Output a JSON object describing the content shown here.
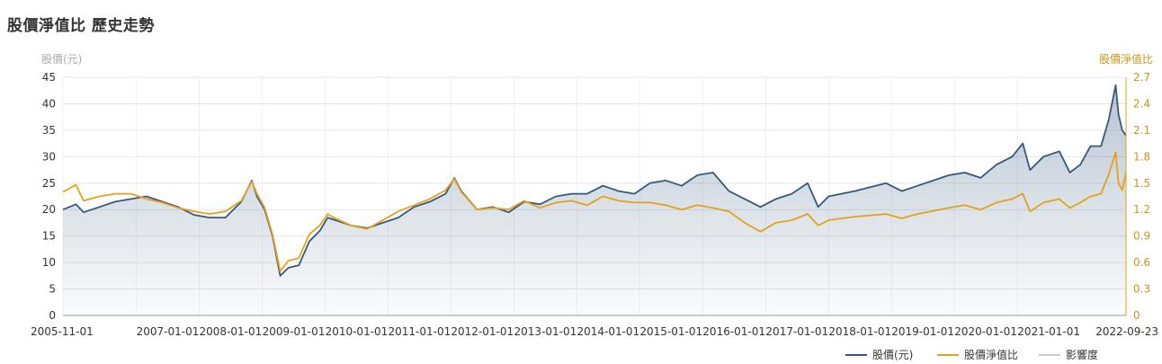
{
  "title": "股價淨值比 歷史走勢",
  "colors": {
    "price": "#34587e",
    "pbr": "#e3a21a",
    "impact": "#cccccc"
  },
  "chart_data": {
    "type": "line",
    "title": "股價淨值比 歷史走勢",
    "x_range": [
      "2005-11-01",
      "2022-09-23"
    ],
    "x_tick_labels": [
      "2005-11-01",
      "2007-01-01",
      "2008-01-01",
      "2009-01-01",
      "2010-01-01",
      "2011-01-01",
      "2012-01-01",
      "2013-01-01",
      "2014-01-01",
      "2015-01-01",
      "2016-01-01",
      "2017-01-01",
      "2018-01-01",
      "2019-01-01",
      "2020-01-01",
      "2021-01-01",
      "2022-09-23"
    ],
    "y_left": {
      "label": "股價(元)",
      "min": 0,
      "max": 45,
      "ticks": [
        0,
        5,
        10,
        15,
        20,
        25,
        30,
        35,
        40,
        45
      ]
    },
    "y_right": {
      "label": "股價淨值比",
      "min": 0,
      "max": 2.7,
      "ticks": [
        "0",
        "0.3",
        "0.6",
        "0.9",
        "1.2",
        "1.5",
        "1.8",
        "2.1",
        "2.4",
        "2.7"
      ]
    },
    "grid": true,
    "legend_position": "bottom-right",
    "series": [
      {
        "name": "股價(元)",
        "axis": "left",
        "area": true,
        "points": [
          [
            "2005-11-01",
            20.0
          ],
          [
            "2006-01-15",
            21.0
          ],
          [
            "2006-03-01",
            19.5
          ],
          [
            "2006-06-01",
            20.5
          ],
          [
            "2006-09-01",
            21.5
          ],
          [
            "2006-12-01",
            22.0
          ],
          [
            "2007-03-01",
            22.5
          ],
          [
            "2007-06-01",
            21.5
          ],
          [
            "2007-09-01",
            20.5
          ],
          [
            "2007-12-01",
            19.0
          ],
          [
            "2008-03-01",
            18.5
          ],
          [
            "2008-06-01",
            18.5
          ],
          [
            "2008-09-01",
            21.5
          ],
          [
            "2008-11-01",
            25.5
          ],
          [
            "2008-12-01",
            22.5
          ],
          [
            "2009-01-15",
            20.0
          ],
          [
            "2009-03-01",
            15.0
          ],
          [
            "2009-04-15",
            7.5
          ],
          [
            "2009-06-01",
            9.0
          ],
          [
            "2009-08-01",
            9.5
          ],
          [
            "2009-10-01",
            14.0
          ],
          [
            "2009-12-01",
            16.0
          ],
          [
            "2010-01-15",
            18.5
          ],
          [
            "2010-03-01",
            18.0
          ],
          [
            "2010-06-01",
            17.0
          ],
          [
            "2010-09-01",
            16.5
          ],
          [
            "2010-12-01",
            17.5
          ],
          [
            "2011-03-01",
            18.5
          ],
          [
            "2011-06-01",
            20.5
          ],
          [
            "2011-09-01",
            21.5
          ],
          [
            "2011-12-01",
            23.0
          ],
          [
            "2012-01-20",
            26.0
          ],
          [
            "2012-03-01",
            23.5
          ],
          [
            "2012-06-01",
            20.0
          ],
          [
            "2012-09-01",
            20.5
          ],
          [
            "2012-12-01",
            19.5
          ],
          [
            "2013-03-01",
            21.5
          ],
          [
            "2013-06-01",
            21.0
          ],
          [
            "2013-09-01",
            22.5
          ],
          [
            "2013-12-01",
            23.0
          ],
          [
            "2014-03-01",
            23.0
          ],
          [
            "2014-06-01",
            24.5
          ],
          [
            "2014-09-01",
            23.5
          ],
          [
            "2014-12-01",
            23.0
          ],
          [
            "2015-03-01",
            25.0
          ],
          [
            "2015-06-01",
            25.5
          ],
          [
            "2015-09-01",
            24.5
          ],
          [
            "2015-12-01",
            26.5
          ],
          [
            "2016-03-01",
            27.0
          ],
          [
            "2016-06-01",
            23.5
          ],
          [
            "2016-09-01",
            22.0
          ],
          [
            "2016-12-01",
            20.5
          ],
          [
            "2017-03-01",
            22.0
          ],
          [
            "2017-06-01",
            23.0
          ],
          [
            "2017-09-01",
            25.0
          ],
          [
            "2017-11-01",
            20.5
          ],
          [
            "2018-01-01",
            22.5
          ],
          [
            "2018-06-01",
            23.5
          ],
          [
            "2018-12-01",
            25.0
          ],
          [
            "2019-03-01",
            23.5
          ],
          [
            "2019-06-01",
            24.5
          ],
          [
            "2019-12-01",
            26.5
          ],
          [
            "2020-03-01",
            27.0
          ],
          [
            "2020-06-01",
            26.0
          ],
          [
            "2020-09-01",
            28.5
          ],
          [
            "2020-12-01",
            30.0
          ],
          [
            "2021-02-01",
            32.5
          ],
          [
            "2021-03-15",
            27.5
          ],
          [
            "2021-06-01",
            30.0
          ],
          [
            "2021-09-01",
            31.0
          ],
          [
            "2021-11-01",
            27.0
          ],
          [
            "2022-01-01",
            28.5
          ],
          [
            "2022-03-01",
            32.0
          ],
          [
            "2022-05-01",
            32.0
          ],
          [
            "2022-06-15",
            37.0
          ],
          [
            "2022-07-25",
            43.5
          ],
          [
            "2022-08-10",
            38.0
          ],
          [
            "2022-09-01",
            35.0
          ],
          [
            "2022-09-23",
            34.0
          ]
        ]
      },
      {
        "name": "股價淨值比",
        "axis": "right",
        "area": false,
        "points": [
          [
            "2005-11-01",
            1.4
          ],
          [
            "2006-01-15",
            1.48
          ],
          [
            "2006-03-01",
            1.3
          ],
          [
            "2006-06-01",
            1.35
          ],
          [
            "2006-09-01",
            1.38
          ],
          [
            "2006-12-01",
            1.38
          ],
          [
            "2007-03-01",
            1.32
          ],
          [
            "2007-06-01",
            1.28
          ],
          [
            "2007-09-01",
            1.22
          ],
          [
            "2007-12-01",
            1.18
          ],
          [
            "2008-03-01",
            1.15
          ],
          [
            "2008-06-01",
            1.18
          ],
          [
            "2008-09-01",
            1.3
          ],
          [
            "2008-11-01",
            1.52
          ],
          [
            "2008-12-01",
            1.38
          ],
          [
            "2009-01-15",
            1.22
          ],
          [
            "2009-03-01",
            0.92
          ],
          [
            "2009-04-15",
            0.5
          ],
          [
            "2009-06-01",
            0.62
          ],
          [
            "2009-08-01",
            0.65
          ],
          [
            "2009-10-01",
            0.92
          ],
          [
            "2009-12-01",
            1.02
          ],
          [
            "2010-01-15",
            1.15
          ],
          [
            "2010-03-01",
            1.1
          ],
          [
            "2010-06-01",
            1.02
          ],
          [
            "2010-09-01",
            0.98
          ],
          [
            "2010-12-01",
            1.08
          ],
          [
            "2011-03-01",
            1.18
          ],
          [
            "2011-06-01",
            1.25
          ],
          [
            "2011-09-01",
            1.32
          ],
          [
            "2011-12-01",
            1.42
          ],
          [
            "2012-01-20",
            1.55
          ],
          [
            "2012-03-01",
            1.4
          ],
          [
            "2012-06-01",
            1.2
          ],
          [
            "2012-09-01",
            1.22
          ],
          [
            "2012-12-01",
            1.2
          ],
          [
            "2013-03-01",
            1.3
          ],
          [
            "2013-06-01",
            1.22
          ],
          [
            "2013-09-01",
            1.28
          ],
          [
            "2013-12-01",
            1.3
          ],
          [
            "2014-03-01",
            1.25
          ],
          [
            "2014-06-01",
            1.35
          ],
          [
            "2014-09-01",
            1.3
          ],
          [
            "2014-12-01",
            1.28
          ],
          [
            "2015-03-01",
            1.28
          ],
          [
            "2015-06-01",
            1.25
          ],
          [
            "2015-09-01",
            1.2
          ],
          [
            "2015-12-01",
            1.25
          ],
          [
            "2016-03-01",
            1.22
          ],
          [
            "2016-06-01",
            1.18
          ],
          [
            "2016-09-01",
            1.05
          ],
          [
            "2016-12-01",
            0.95
          ],
          [
            "2017-03-01",
            1.05
          ],
          [
            "2017-06-01",
            1.08
          ],
          [
            "2017-09-01",
            1.15
          ],
          [
            "2017-11-01",
            1.02
          ],
          [
            "2018-01-01",
            1.08
          ],
          [
            "2018-06-01",
            1.12
          ],
          [
            "2018-12-01",
            1.15
          ],
          [
            "2019-03-01",
            1.1
          ],
          [
            "2019-06-01",
            1.15
          ],
          [
            "2019-12-01",
            1.22
          ],
          [
            "2020-03-01",
            1.25
          ],
          [
            "2020-06-01",
            1.2
          ],
          [
            "2020-09-01",
            1.28
          ],
          [
            "2020-12-01",
            1.32
          ],
          [
            "2021-02-01",
            1.38
          ],
          [
            "2021-03-15",
            1.18
          ],
          [
            "2021-06-01",
            1.28
          ],
          [
            "2021-09-01",
            1.32
          ],
          [
            "2021-11-01",
            1.22
          ],
          [
            "2022-01-01",
            1.28
          ],
          [
            "2022-03-01",
            1.35
          ],
          [
            "2022-05-01",
            1.38
          ],
          [
            "2022-06-15",
            1.6
          ],
          [
            "2022-07-25",
            1.85
          ],
          [
            "2022-08-10",
            1.5
          ],
          [
            "2022-09-01",
            1.42
          ],
          [
            "2022-09-23",
            1.62
          ]
        ]
      }
    ],
    "legend": [
      {
        "label": "股價(元)",
        "color": "#34587e"
      },
      {
        "label": "股價淨值比",
        "color": "#e3a21a"
      },
      {
        "label": "影響度",
        "color": "#cccccc"
      }
    ]
  }
}
